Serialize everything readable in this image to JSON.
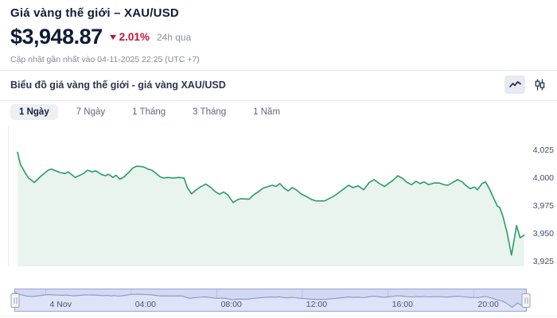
{
  "header": {
    "title": "Giá vàng thế giới – XAU/USD",
    "price": "$3,948.87",
    "change": "2.01%",
    "change_direction": "down",
    "change_period": "24h qua",
    "updated": "Cập nhật gần nhất vào 04-11-2025 22:25 (UTC +7)"
  },
  "panel": {
    "title": "Biểu đồ giá vàng thế giới - giá vàng XAU/USD",
    "chart_type_options": [
      "line-chart",
      "candlestick-chart"
    ],
    "active_chart_type": "line-chart"
  },
  "range_tabs": [
    {
      "label": "1 Ngày",
      "active": true
    },
    {
      "label": "7 Ngày",
      "active": false
    },
    {
      "label": "1 Tháng",
      "active": false
    },
    {
      "label": "3 Tháng",
      "active": false
    },
    {
      "label": "1 Năm",
      "active": false
    }
  ],
  "colors": {
    "accent_red": "#c81134",
    "line_green": "#2a9b68",
    "area_green": "#e9f4ee",
    "navigator_bg": "#d3d9f3",
    "navigator_line": "#7f9cc6",
    "navigator_fill": "#dfe3f7",
    "text_dark": "#0f1c36",
    "text_gray": "#848b9c"
  },
  "chart_data": {
    "type": "area",
    "title": "Biểu đồ giá vàng thế giới - giá vàng XAU/USD",
    "symbol": "XAU/USD",
    "xlabel": "",
    "ylabel": "",
    "grid": false,
    "legend": false,
    "yaxis_position": "right",
    "ylim": [
      3921,
      4049
    ],
    "nav_ylim": [
      3925,
      4030
    ],
    "yticks": [
      {
        "value": 4025,
        "label": "4,025"
      },
      {
        "value": 4000,
        "label": "4,000"
      },
      {
        "value": 3975,
        "label": "3,975"
      },
      {
        "value": 3950,
        "label": "3,950"
      },
      {
        "value": 3925,
        "label": "3,925"
      }
    ],
    "xticks": [
      {
        "f": 0.06,
        "label": "4 Nov"
      },
      {
        "f": 0.227,
        "label": "04:00"
      },
      {
        "f": 0.395,
        "label": "08:00"
      },
      {
        "f": 0.562,
        "label": "12:00"
      },
      {
        "f": 0.73,
        "label": "16:00"
      },
      {
        "f": 0.898,
        "label": "20:00"
      }
    ],
    "points": [
      [
        0.0,
        4023
      ],
      [
        0.006,
        4012
      ],
      [
        0.016,
        4004
      ],
      [
        0.022,
        4000
      ],
      [
        0.033,
        3996
      ],
      [
        0.047,
        4002
      ],
      [
        0.06,
        4007
      ],
      [
        0.067,
        4008
      ],
      [
        0.083,
        4005
      ],
      [
        0.094,
        4004
      ],
      [
        0.1,
        4005.5
      ],
      [
        0.114,
        4000.5
      ],
      [
        0.13,
        4004
      ],
      [
        0.138,
        4007
      ],
      [
        0.147,
        4005.5
      ],
      [
        0.154,
        4006.5
      ],
      [
        0.166,
        4003
      ],
      [
        0.174,
        4002
      ],
      [
        0.179,
        4003.5
      ],
      [
        0.188,
        4000.5
      ],
      [
        0.194,
        4002.5
      ],
      [
        0.202,
        3999
      ],
      [
        0.21,
        4001
      ],
      [
        0.219,
        4005
      ],
      [
        0.227,
        4009
      ],
      [
        0.235,
        4010.5
      ],
      [
        0.248,
        4010
      ],
      [
        0.257,
        4008
      ],
      [
        0.265,
        4007
      ],
      [
        0.273,
        4004
      ],
      [
        0.281,
        4001
      ],
      [
        0.288,
        4000
      ],
      [
        0.296,
        4000.5
      ],
      [
        0.307,
        4000
      ],
      [
        0.318,
        4000.5
      ],
      [
        0.328,
        4000
      ],
      [
        0.335,
        3991
      ],
      [
        0.343,
        3986
      ],
      [
        0.351,
        3989
      ],
      [
        0.36,
        3992
      ],
      [
        0.371,
        3994.5
      ],
      [
        0.381,
        3991.5
      ],
      [
        0.389,
        3988
      ],
      [
        0.398,
        3985.5
      ],
      [
        0.406,
        3987.5
      ],
      [
        0.414,
        3985
      ],
      [
        0.425,
        3978
      ],
      [
        0.433,
        3980.5
      ],
      [
        0.44,
        3981.5
      ],
      [
        0.456,
        3981
      ],
      [
        0.464,
        3984.5
      ],
      [
        0.475,
        3988
      ],
      [
        0.484,
        3991
      ],
      [
        0.494,
        3992.5
      ],
      [
        0.502,
        3993.5
      ],
      [
        0.509,
        3992.5
      ],
      [
        0.517,
        3995
      ],
      [
        0.525,
        3991
      ],
      [
        0.533,
        3988.5
      ],
      [
        0.541,
        3991.5
      ],
      [
        0.549,
        3989.5
      ],
      [
        0.558,
        3986
      ],
      [
        0.569,
        3983.5
      ],
      [
        0.578,
        3981
      ],
      [
        0.588,
        3979.5
      ],
      [
        0.605,
        3979.5
      ],
      [
        0.624,
        3984
      ],
      [
        0.639,
        3989
      ],
      [
        0.652,
        3993.5
      ],
      [
        0.661,
        3991.5
      ],
      [
        0.671,
        3993
      ],
      [
        0.682,
        3989.5
      ],
      [
        0.693,
        3996
      ],
      [
        0.702,
        3998.5
      ],
      [
        0.713,
        3995
      ],
      [
        0.723,
        3992.5
      ],
      [
        0.732,
        3995.5
      ],
      [
        0.74,
        3998
      ],
      [
        0.749,
        4002
      ],
      [
        0.759,
        3999.5
      ],
      [
        0.766,
        3996.5
      ],
      [
        0.776,
        3994
      ],
      [
        0.785,
        3997
      ],
      [
        0.793,
        3995
      ],
      [
        0.801,
        3996.5
      ],
      [
        0.81,
        3994
      ],
      [
        0.82,
        3995.5
      ],
      [
        0.831,
        3995.5
      ],
      [
        0.84,
        3994
      ],
      [
        0.848,
        3993.5
      ],
      [
        0.857,
        3996
      ],
      [
        0.867,
        3998.5
      ],
      [
        0.876,
        3996.5
      ],
      [
        0.884,
        3993
      ],
      [
        0.892,
        3990.5
      ],
      [
        0.9,
        3992
      ],
      [
        0.906,
        3989.5
      ],
      [
        0.915,
        3995
      ],
      [
        0.922,
        3996.5
      ],
      [
        0.93,
        3990
      ],
      [
        0.937,
        3983
      ],
      [
        0.945,
        3975
      ],
      [
        0.95,
        3973.5
      ],
      [
        0.956,
        3966
      ],
      [
        0.964,
        3952
      ],
      [
        0.973,
        3931
      ],
      [
        0.983,
        3957.5
      ],
      [
        0.99,
        3946.5
      ],
      [
        0.998,
        3948.9
      ]
    ]
  }
}
